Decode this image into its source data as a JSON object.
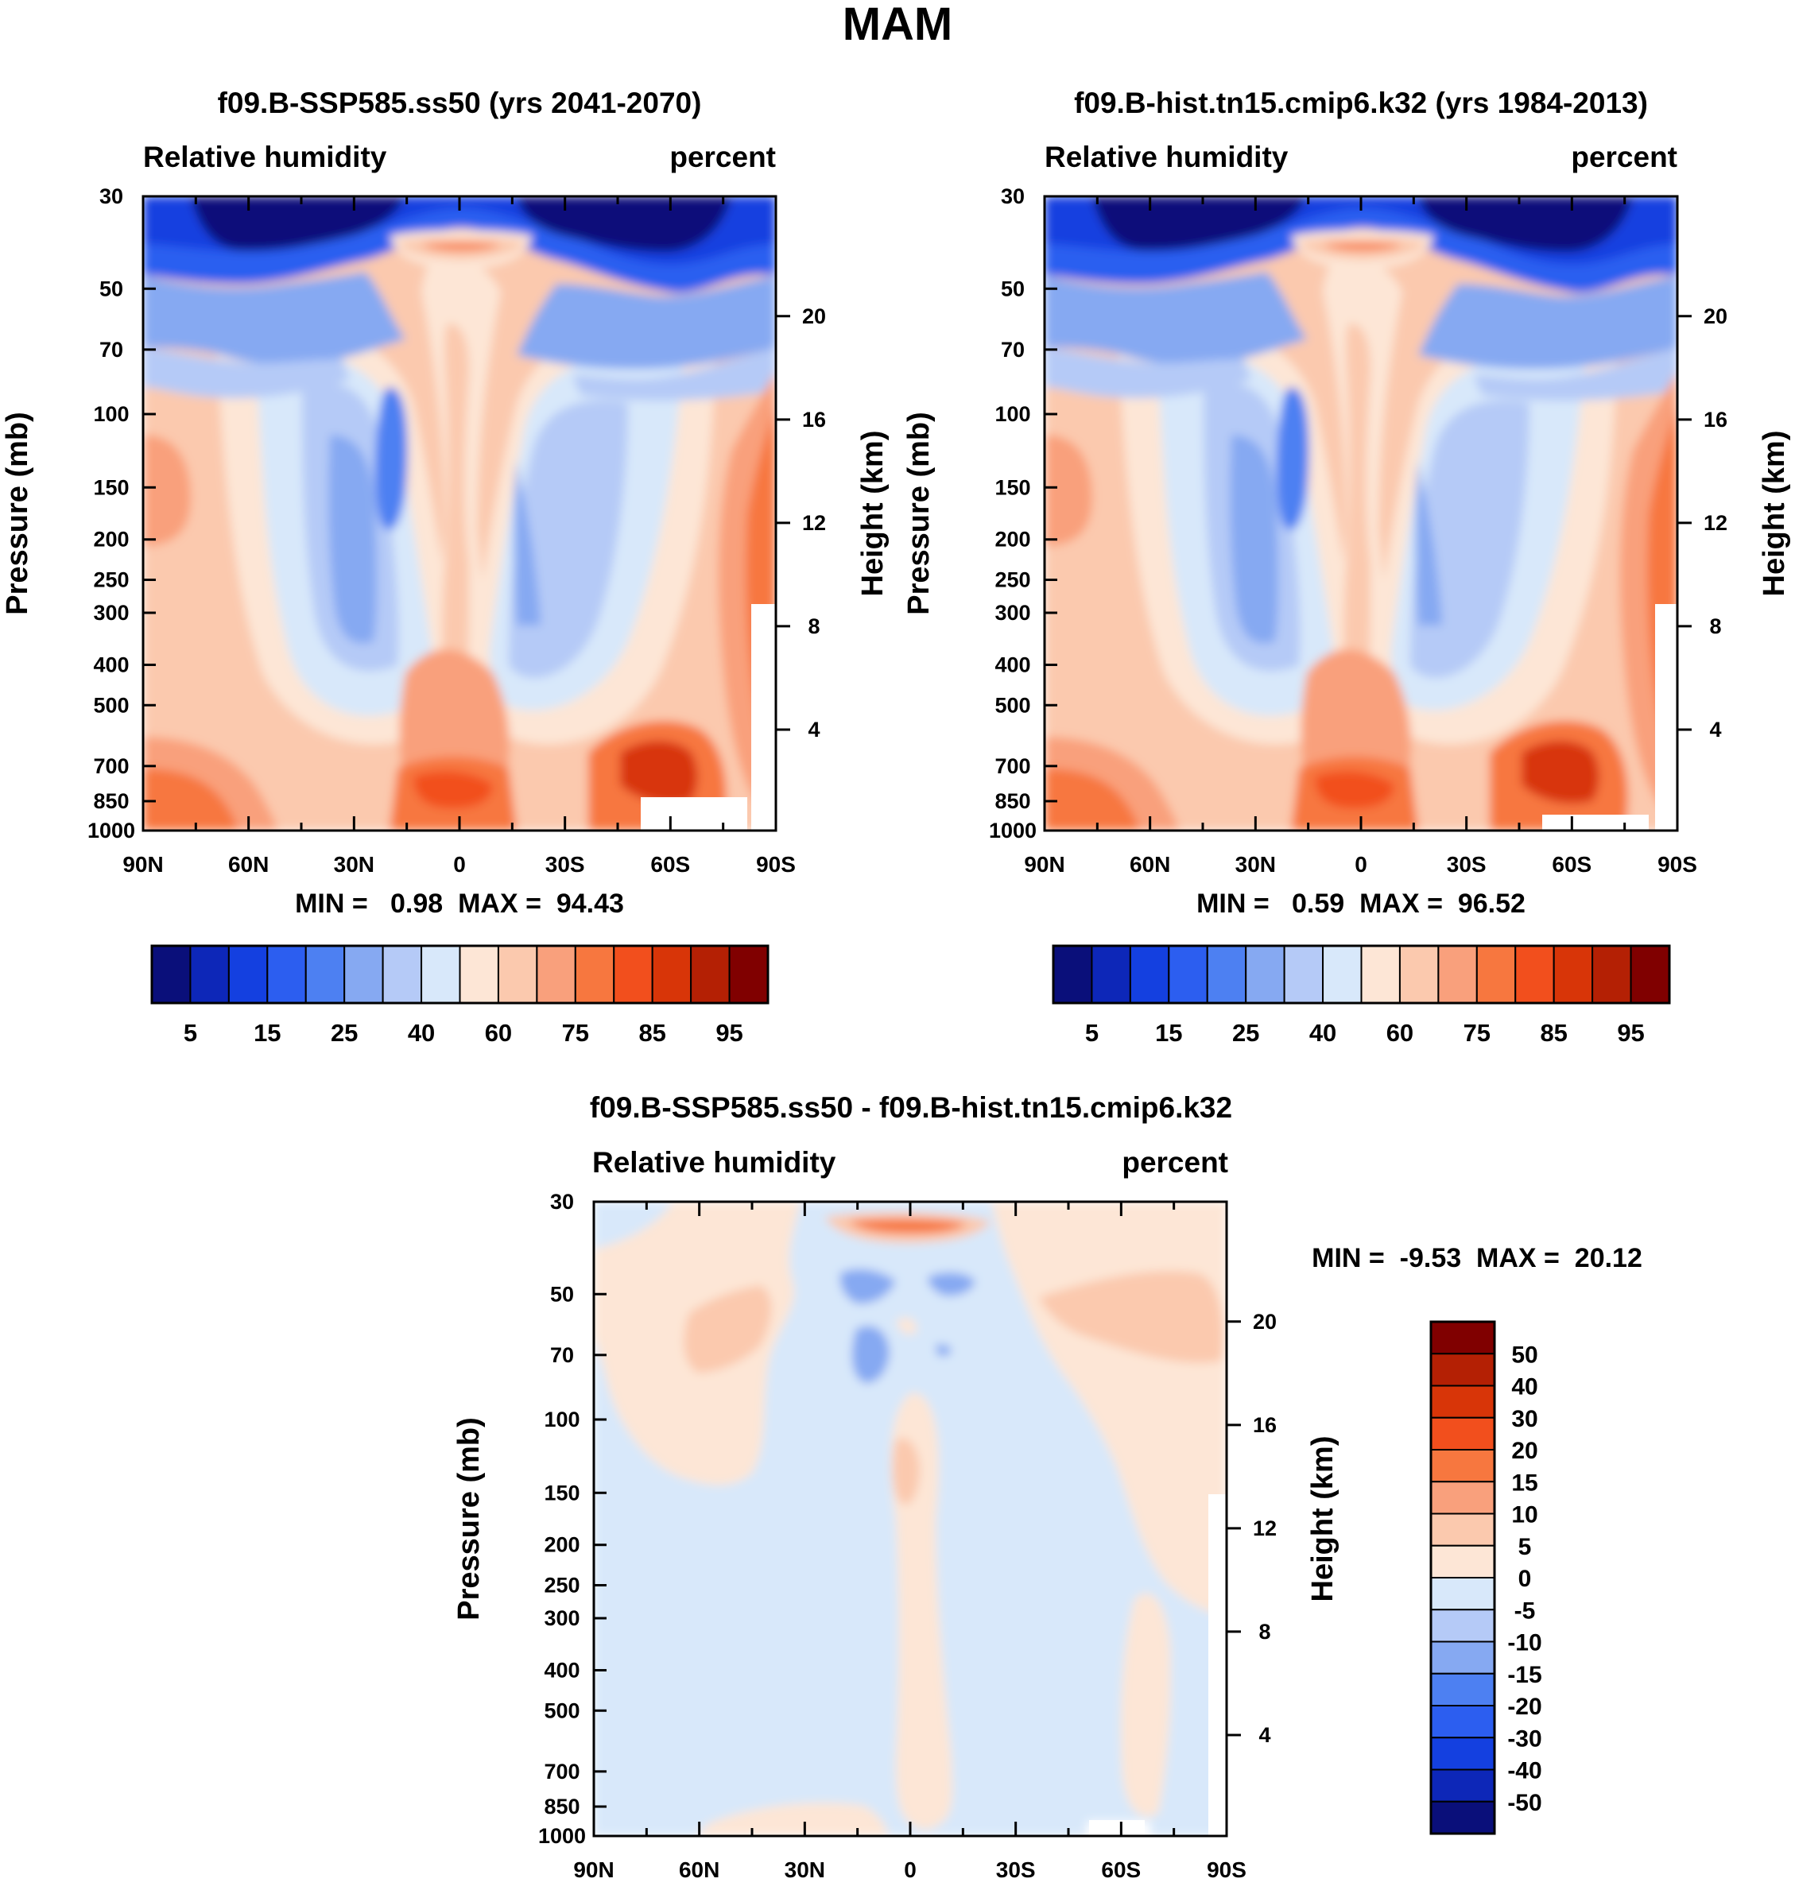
{
  "figure_title": "MAM",
  "chart_data": [
    {
      "id": "panel1",
      "type": "heatmap",
      "title": "f09.B-SSP585.ss50 (yrs 2041-2070)",
      "left_label": "Relative humidity",
      "right_label": "percent",
      "ylabel": "Pressure (mb)",
      "ylabel_right": "Height (km)",
      "x_ticks": [
        "90N",
        "60N",
        "30N",
        "0",
        "30S",
        "60S",
        "90S"
      ],
      "y_ticks": [
        "30",
        "50",
        "70",
        "100",
        "150",
        "200",
        "250",
        "300",
        "400",
        "500",
        "700",
        "850",
        "1000"
      ],
      "y_ticks_right": [
        "20",
        "16",
        "12",
        "8",
        "4"
      ],
      "stats": "MIN =   0.98  MAX =  94.43",
      "min": 0.98,
      "max": 94.43,
      "colorbar": {
        "orientation": "horizontal",
        "colors": [
          "#0a0f7a",
          "#0d27b8",
          "#1440e0",
          "#2c5ef0",
          "#4d80f2",
          "#86a9f2",
          "#b5caf7",
          "#d8e8fa",
          "#fde6d6",
          "#fbc9ae",
          "#f9a07c",
          "#f7773f",
          "#f24f1d",
          "#d83508",
          "#b42004",
          "#800000"
        ],
        "labels": [
          "5",
          "15",
          "25",
          "40",
          "60",
          "75",
          "85",
          "95"
        ]
      }
    },
    {
      "id": "panel2",
      "type": "heatmap",
      "title": "f09.B-hist.tn15.cmip6.k32 (yrs 1984-2013)",
      "left_label": "Relative humidity",
      "right_label": "percent",
      "ylabel": "Pressure (mb)",
      "ylabel_right": "Height (km)",
      "x_ticks": [
        "90N",
        "60N",
        "30N",
        "0",
        "30S",
        "60S",
        "90S"
      ],
      "y_ticks": [
        "30",
        "50",
        "70",
        "100",
        "150",
        "200",
        "250",
        "300",
        "400",
        "500",
        "700",
        "850",
        "1000"
      ],
      "y_ticks_right": [
        "20",
        "16",
        "12",
        "8",
        "4"
      ],
      "stats": "MIN =   0.59  MAX =  96.52",
      "min": 0.59,
      "max": 96.52,
      "colorbar": {
        "orientation": "horizontal",
        "colors": [
          "#0a0f7a",
          "#0d27b8",
          "#1440e0",
          "#2c5ef0",
          "#4d80f2",
          "#86a9f2",
          "#b5caf7",
          "#d8e8fa",
          "#fde6d6",
          "#fbc9ae",
          "#f9a07c",
          "#f7773f",
          "#f24f1d",
          "#d83508",
          "#b42004",
          "#800000"
        ],
        "labels": [
          "5",
          "15",
          "25",
          "40",
          "60",
          "75",
          "85",
          "95"
        ]
      }
    },
    {
      "id": "panel3",
      "type": "heatmap",
      "title": "f09.B-SSP585.ss50 - f09.B-hist.tn15.cmip6.k32",
      "left_label": "Relative humidity",
      "right_label": "percent",
      "ylabel": "Pressure (mb)",
      "ylabel_right": "Height (km)",
      "x_ticks": [
        "90N",
        "60N",
        "30N",
        "0",
        "30S",
        "60S",
        "90S"
      ],
      "y_ticks": [
        "30",
        "50",
        "70",
        "100",
        "150",
        "200",
        "250",
        "300",
        "400",
        "500",
        "700",
        "850",
        "1000"
      ],
      "y_ticks_right": [
        "20",
        "16",
        "12",
        "8",
        "4"
      ],
      "stats": "MIN =  -9.53  MAX =  20.12",
      "min": -9.53,
      "max": 20.12,
      "colorbar": {
        "orientation": "vertical",
        "colors": [
          "#800000",
          "#b42004",
          "#d83508",
          "#f24f1d",
          "#f7773f",
          "#f9a07c",
          "#fbc9ae",
          "#fde6d6",
          "#d8e8fa",
          "#b5caf7",
          "#86a9f2",
          "#4d80f2",
          "#2c5ef0",
          "#1440e0",
          "#0d27b8",
          "#0a0f7a"
        ],
        "labels": [
          "50",
          "40",
          "30",
          "20",
          "15",
          "10",
          "5",
          "0",
          "-5",
          "-10",
          "-15",
          "-20",
          "-30",
          "-40",
          "-50"
        ]
      }
    }
  ]
}
